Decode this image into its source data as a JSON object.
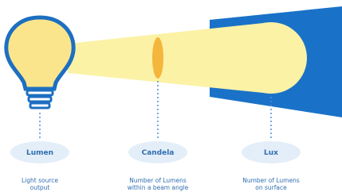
{
  "stages": [
    {
      "title": "Lumen",
      "description": [
        "Light source",
        "output"
      ]
    },
    {
      "title": "Candela",
      "description": [
        "Number of Lumens",
        "within a beam angle"
      ]
    },
    {
      "title": "Lux",
      "description": [
        "Number of Lumens",
        "on surface"
      ]
    }
  ]
}
